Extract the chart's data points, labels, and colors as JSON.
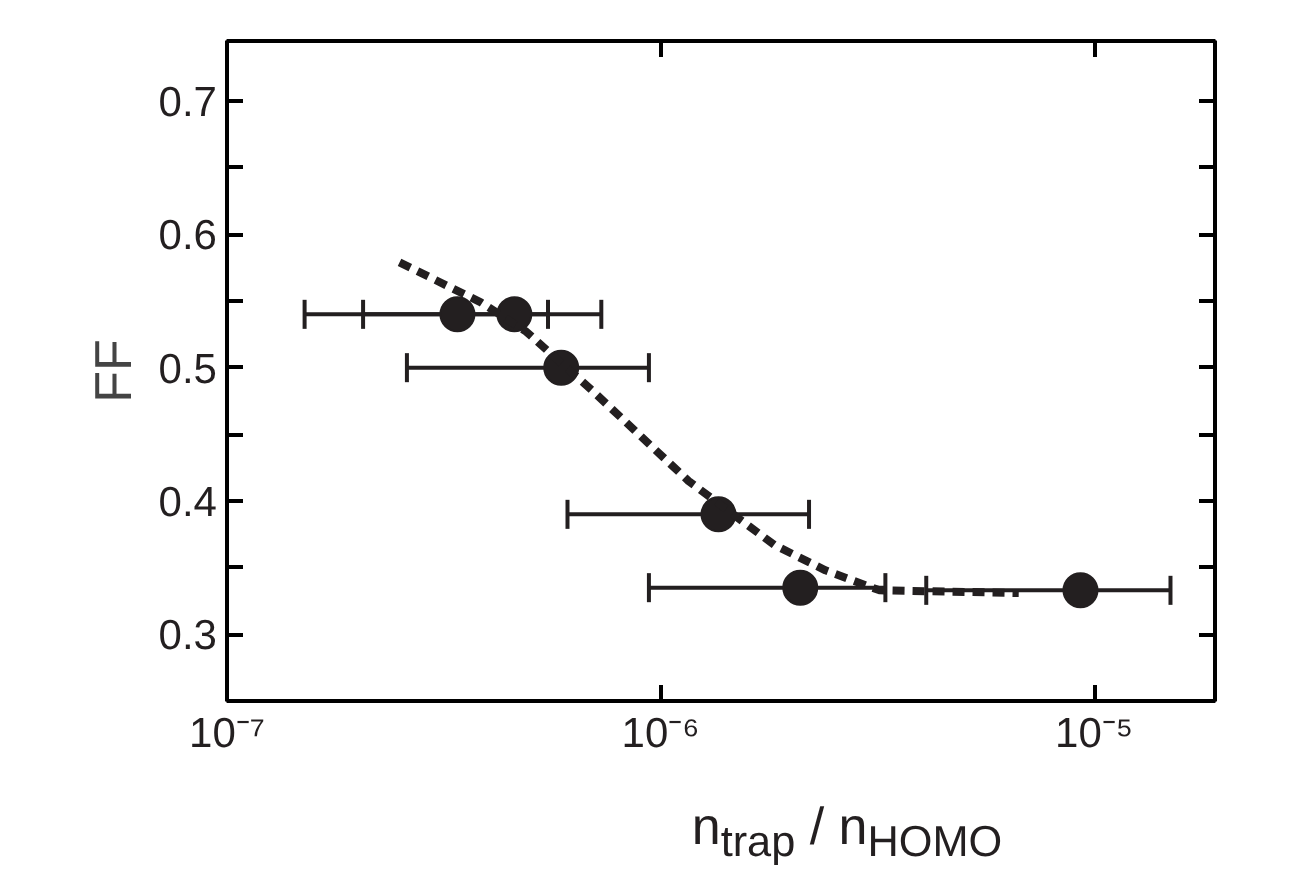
{
  "chart_data": {
    "type": "scatter",
    "xlabel": "n$_{trap}$ / n$_{HOMO}$",
    "ylabel": "FF",
    "log": "x",
    "xlim": [
      1e-07,
      1.9e-05
    ],
    "xticks": [
      {
        "value": 1e-07,
        "label": "10⁻⁷"
      },
      {
        "value": 1e-06,
        "label": "10⁻⁶"
      },
      {
        "value": 1e-05,
        "label": "10⁻⁵"
      }
    ],
    "ylim": [
      0.25,
      0.745
    ],
    "yticks": [
      0.3,
      {
        "value": 0.35,
        "label": null
      },
      0.4,
      {
        "value": 0.45,
        "label": null
      },
      0.5,
      {
        "value": 0.55,
        "label": null
      },
      0.6,
      {
        "value": 0.65,
        "label": null
      },
      0.7
    ],
    "grid": false,
    "series": [
      {
        "marker": "circle",
        "color": "#231f20",
        "x": [
          3.4e-07,
          4.6e-07,
          5.9e-07,
          1.36e-06,
          2.1e-06,
          9.3e-06
        ],
        "values": [
          0.54,
          0.54,
          0.5,
          0.39,
          0.335,
          0.333
        ],
        "xerrors": [
          [
            1.51e-07,
            5.5e-07
          ],
          [
            2.06e-07,
            7.3e-07
          ],
          [
            2.6e-07,
            9.4e-07
          ],
          [
            6.1e-07,
            2.2e-06
          ],
          [
            9.4e-07,
            3.3e-06
          ],
          [
            4.1e-06,
            1.5e-05
          ]
        ]
      },
      {
        "type": "line",
        "color": "#231f20",
        "line_style": "dashed",
        "x": [
          2.5e-07,
          3.85e-07,
          4.9e-07,
          7e-07,
          1.16e-06,
          1.83e-06,
          2.4e-06,
          3.2e-06,
          6.7e-06
        ],
        "values": [
          0.579,
          0.549,
          0.527,
          0.482,
          0.415,
          0.367,
          0.348,
          0.333,
          0.331
        ]
      }
    ]
  }
}
